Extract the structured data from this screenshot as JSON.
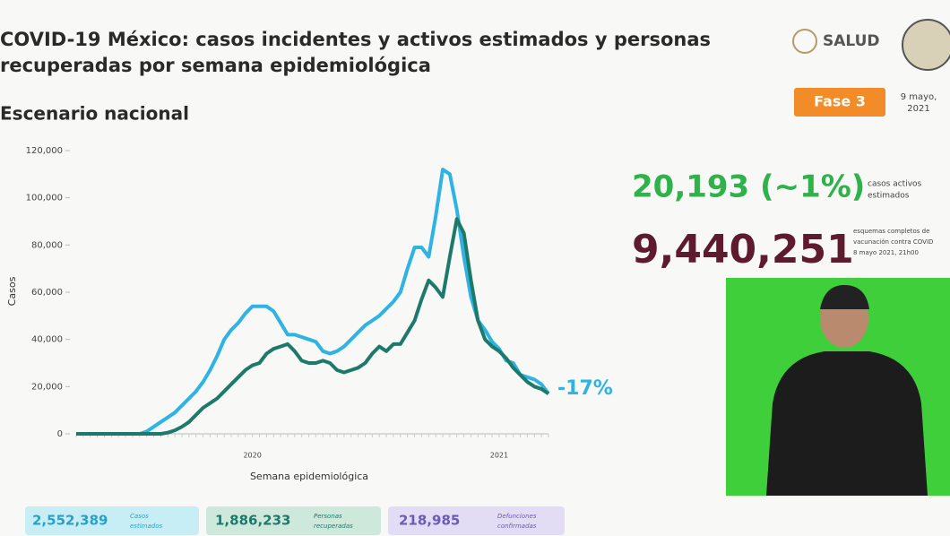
{
  "header": {
    "title_lines": [
      "COVID-19 México: casos incidentes y activos estimados y personas",
      "recuperadas por semana epidemiológica"
    ],
    "subtitle": "Escenario nacional",
    "logo": "SALUD",
    "phase": "Fase 3",
    "date_lines": [
      "9 mayo,",
      "2021"
    ]
  },
  "stats": {
    "active": {
      "value": "20,193 (~1%)",
      "label_lines": [
        "casos activos",
        "estimados"
      ]
    },
    "vaccination": {
      "value": "9,440,251",
      "label_lines": [
        "esquemas completos de",
        "vacunación contra COVID",
        "8 mayo 2021, 21h00"
      ]
    }
  },
  "totals": [
    {
      "value": "2,552,389",
      "label_lines": [
        "Casos",
        "estimados"
      ]
    },
    {
      "value": "1,886,233",
      "label_lines": [
        "Personas",
        "recuperadas"
      ]
    },
    {
      "value": "218,985",
      "label_lines": [
        "Defunciones",
        "confirmadas"
      ]
    }
  ],
  "chart_data": {
    "type": "line",
    "y_label": "Casos",
    "x_label": "Semana epidemiológica",
    "annotation": "-17%",
    "grid": false,
    "categories": [
      null,
      null,
      null,
      null,
      null,
      null,
      null,
      null,
      null,
      null,
      null,
      null,
      null,
      null,
      null,
      null,
      null,
      null,
      null,
      null,
      null,
      null,
      null,
      null,
      null,
      "2020",
      null,
      null,
      null,
      null,
      null,
      null,
      null,
      null,
      null,
      null,
      null,
      null,
      null,
      null,
      null,
      null,
      null,
      null,
      null,
      null,
      null,
      null,
      null,
      null,
      null,
      null,
      null,
      null,
      null,
      null,
      null,
      null,
      null,
      null,
      "2021",
      null,
      null,
      null,
      null,
      null,
      null,
      null
    ],
    "ylim": [
      0,
      120000
    ],
    "yticks": [
      0,
      {
        "value": 20000,
        "label": "20,000"
      },
      {
        "value": 40000,
        "label": "40,000"
      },
      {
        "value": 60000,
        "label": "60,000"
      },
      {
        "value": 80000,
        "label": "80,000"
      },
      {
        "value": 100000,
        "label": "100,000"
      },
      {
        "value": 120000,
        "label": "120,000"
      }
    ],
    "series": [
      {
        "color": "#2fb3e3",
        "values": [
          0,
          0,
          0,
          0,
          0,
          0,
          0,
          0,
          0,
          0,
          1000,
          3000,
          5000,
          7000,
          9000,
          12000,
          15000,
          18000,
          22000,
          27000,
          33000,
          40000,
          44000,
          47000,
          51000,
          54000,
          54000,
          54000,
          52000,
          47000,
          42000,
          42000,
          41000,
          40000,
          39000,
          35000,
          34000,
          35000,
          37000,
          40000,
          43000,
          46000,
          48000,
          50000,
          53000,
          56000,
          60000,
          70000,
          79000,
          79000,
          75000,
          92000,
          112000,
          110000,
          95000,
          75000,
          58000,
          48000,
          44000,
          39000,
          36000,
          31000,
          30000,
          25000,
          24000,
          23000,
          21000,
          17000
        ]
      },
      {
        "color": "#1d7a6a",
        "values": [
          0,
          0,
          0,
          0,
          0,
          0,
          0,
          0,
          0,
          0,
          0,
          0,
          0,
          500,
          1500,
          3000,
          5000,
          8000,
          11000,
          13000,
          15000,
          18000,
          21000,
          24000,
          27000,
          29000,
          30000,
          34000,
          36000,
          37000,
          38000,
          35000,
          31000,
          30000,
          30000,
          31000,
          30000,
          27000,
          26000,
          27000,
          28000,
          30000,
          34000,
          37000,
          35000,
          38000,
          38000,
          43000,
          48000,
          57000,
          65000,
          62000,
          58000,
          75000,
          91000,
          85000,
          65000,
          48000,
          40000,
          37000,
          35000,
          32000,
          28000,
          25000,
          22000,
          20000,
          19000,
          17000
        ]
      }
    ]
  }
}
